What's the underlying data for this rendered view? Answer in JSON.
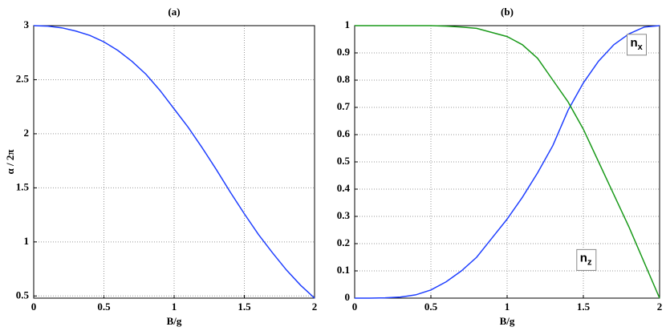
{
  "chart_data": [
    {
      "type": "line",
      "title": "(a)",
      "x_label": "B/g",
      "y_label": "α / 2π",
      "x": [
        0,
        0.1,
        0.2,
        0.3,
        0.4,
        0.5,
        0.6,
        0.7,
        0.8,
        0.9,
        1.0,
        1.1,
        1.2,
        1.3,
        1.4,
        1.5,
        1.6,
        1.7,
        1.8,
        1.9,
        2.0
      ],
      "series": [
        {
          "color": "#1f3fff",
          "values": [
            3,
            2.995,
            2.98,
            2.95,
            2.91,
            2.85,
            2.77,
            2.67,
            2.55,
            2.4,
            2.23,
            2.06,
            1.87,
            1.67,
            1.46,
            1.26,
            1.07,
            0.9,
            0.74,
            0.6,
            0.48
          ]
        }
      ],
      "xlim": [
        0,
        2
      ],
      "ylim": [
        0.48,
        3
      ],
      "xticks": [
        0,
        0.5,
        1,
        1.5,
        2
      ],
      "yticks": [
        0.5,
        1,
        1.5,
        2,
        2.5,
        3
      ],
      "grid": true
    },
    {
      "type": "line",
      "title": "(b)",
      "x_label": "B/g",
      "x": [
        0,
        0.1,
        0.2,
        0.3,
        0.4,
        0.5,
        0.6,
        0.7,
        0.8,
        0.9,
        1.0,
        1.1,
        1.2,
        1.3,
        1.4,
        1.5,
        1.6,
        1.7,
        1.8,
        1.9,
        2.0
      ],
      "series": [
        {
          "color": "#1f3fff",
          "values": [
            0,
            0,
            0.001,
            0.004,
            0.012,
            0.03,
            0.06,
            0.1,
            0.15,
            0.22,
            0.29,
            0.37,
            0.46,
            0.56,
            0.69,
            0.79,
            0.87,
            0.93,
            0.97,
            0.995,
            1
          ]
        },
        {
          "color": "#1a9a1a",
          "values": [
            1,
            1,
            1,
            1,
            1,
            1,
            0.998,
            0.995,
            0.99,
            0.975,
            0.96,
            0.93,
            0.88,
            0.8,
            0.72,
            0.62,
            0.5,
            0.38,
            0.26,
            0.13,
            0
          ]
        }
      ],
      "annotations": [
        {
          "base": "n",
          "sub": "x",
          "x": 1.85,
          "y": 0.93
        },
        {
          "base": "n",
          "sub": "z",
          "x": 1.52,
          "y": 0.14
        }
      ],
      "xlim": [
        0,
        2
      ],
      "ylim": [
        0,
        1
      ],
      "xticks": [
        0,
        0.5,
        1,
        1.5,
        2
      ],
      "yticks": [
        0,
        0.1,
        0.2,
        0.3,
        0.4,
        0.5,
        0.6,
        0.7,
        0.8,
        0.9,
        1
      ],
      "grid": true
    }
  ]
}
